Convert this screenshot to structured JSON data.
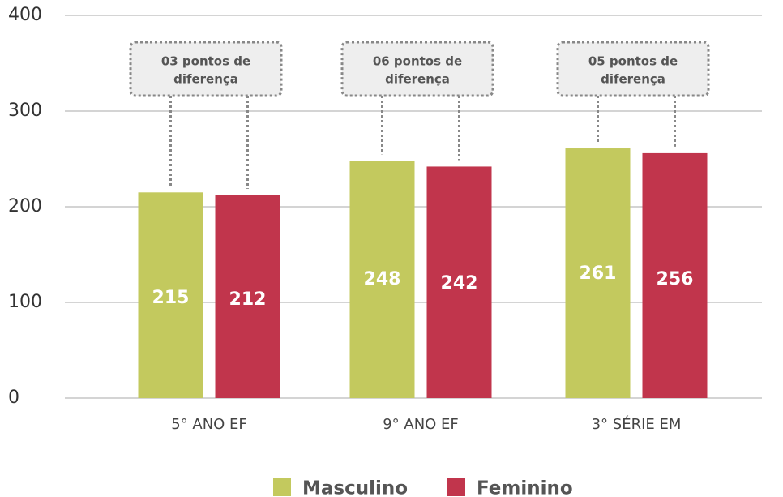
{
  "chart_data": {
    "type": "bar",
    "categories": [
      "5° ANO EF",
      "9° ANO EF",
      "3° SÉRIE EM"
    ],
    "series": [
      {
        "name": "Masculino",
        "color": "#c3c95e",
        "values": [
          215,
          248,
          261
        ]
      },
      {
        "name": "Feminino",
        "color": "#c1354c",
        "values": [
          212,
          242,
          256
        ]
      }
    ],
    "annotations": [
      [
        "03 pontos de",
        "diferença"
      ],
      [
        "06 pontos de",
        "diferença"
      ],
      [
        "05 pontos de",
        "diferença"
      ]
    ],
    "ylim": [
      0,
      400
    ],
    "yticks": [
      0,
      100,
      200,
      300,
      400
    ],
    "grid": true,
    "legend": "bottom"
  }
}
